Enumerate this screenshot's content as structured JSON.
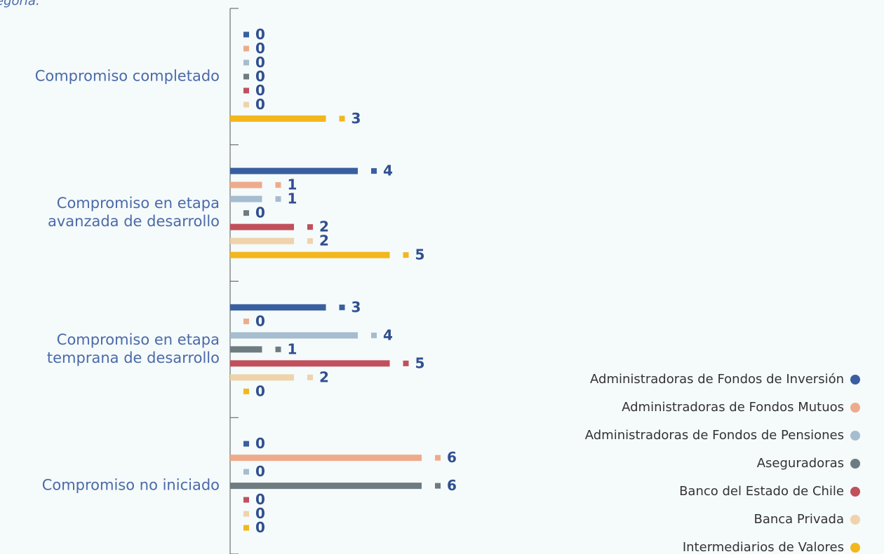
{
  "chart_data": {
    "type": "bar",
    "orientation": "horizontal",
    "subtitle": "egoría.",
    "categories": [
      "Compromiso completado",
      "Compromiso en etapa\navanzada de desarrollo",
      "Compromiso en etapa\ntemprana de desarrollo",
      "Compromiso no iniciado"
    ],
    "series": [
      {
        "name": "Administradoras de Fondos de Inversión",
        "color": "#3a5fa0",
        "values": [
          0,
          4,
          3,
          0
        ]
      },
      {
        "name": "Administradoras de Fondos Mutuos",
        "color": "#eeab8b",
        "values": [
          0,
          1,
          0,
          6
        ]
      },
      {
        "name": "Administradoras de Fondos de Pensiones",
        "color": "#a6bccf",
        "values": [
          0,
          1,
          4,
          0
        ]
      },
      {
        "name": "Aseguradoras",
        "color": "#6e7b80",
        "values": [
          0,
          0,
          1,
          6
        ]
      },
      {
        "name": "Banco del Estado de Chile",
        "color": "#c0505c",
        "values": [
          0,
          2,
          5,
          0
        ]
      },
      {
        "name": "Banca Privada",
        "color": "#efd3aa",
        "values": [
          0,
          2,
          2,
          0
        ]
      },
      {
        "name": "Intermediarios de Valores",
        "color": "#f2b71c",
        "values": [
          3,
          5,
          0,
          0
        ]
      }
    ],
    "xlim": [
      0,
      6
    ],
    "legend": "right"
  }
}
